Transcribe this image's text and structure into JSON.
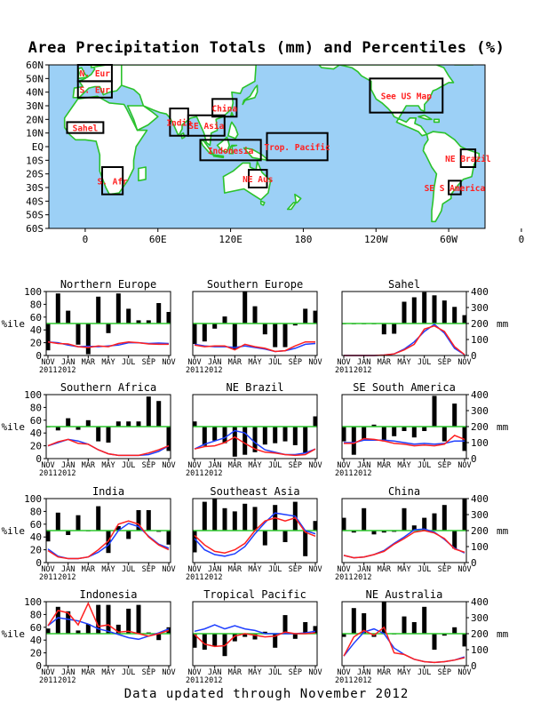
{
  "map": {
    "title": "Area Precipitation Totals (mm) and Percentiles (%)",
    "lat_ticks": [
      "60N",
      "50N",
      "40N",
      "30N",
      "20N",
      "10N",
      "EQ",
      "10S",
      "20S",
      "30S",
      "40S",
      "50S",
      "60S"
    ],
    "lon_ticks": [
      "0",
      "60E",
      "120E",
      "180",
      "120W",
      "60W",
      "0"
    ],
    "regions": [
      {
        "label": "N. Eur",
        "box": {
          "lon0": -6,
          "lon1": 22,
          "lat0": 48,
          "lat1": 60
        }
      },
      {
        "label": "S. Eur",
        "box": {
          "lon0": -6,
          "lon1": 22,
          "lat0": 36,
          "lat1": 48
        }
      },
      {
        "label": "Sahel",
        "box": {
          "lon0": -15,
          "lon1": 15,
          "lat0": 10,
          "lat1": 18
        }
      },
      {
        "label": "S. Afr",
        "box": {
          "lon0": 14,
          "lon1": 31,
          "lat0": -35,
          "lat1": -15
        }
      },
      {
        "label": "India",
        "box": {
          "lon0": 70,
          "lon1": 85,
          "lat0": 8,
          "lat1": 28
        }
      },
      {
        "label": "SE Asia",
        "box": {
          "lon0": 85,
          "lon1": 115,
          "lat0": 8,
          "lat1": 23
        }
      },
      {
        "label": "China",
        "box": {
          "lon0": 105,
          "lon1": 125,
          "lat0": 22,
          "lat1": 35
        }
      },
      {
        "label": "Indonesia",
        "box": {
          "lon0": 95,
          "lon1": 145,
          "lat0": -10,
          "lat1": 5
        }
      },
      {
        "label": "Trop. Pacific",
        "box": {
          "lon0": 150,
          "lon1": 200,
          "lat0": -10,
          "lat1": 10
        }
      },
      {
        "label": "NE Aus",
        "box": {
          "lon0": 135,
          "lon1": 150,
          "lat0": -30,
          "lat1": -17
        }
      },
      {
        "label": "See US Map",
        "box": {
          "lon0": 235,
          "lon1": 295,
          "lat0": 25,
          "lat1": 50
        }
      },
      {
        "label": "NE Brazil",
        "box": {
          "lon0": 310,
          "lon1": 322,
          "lat0": -15,
          "lat1": -2
        }
      },
      {
        "label": "SE S America",
        "box": {
          "lon0": 300,
          "lon1": 310,
          "lat0": -35,
          "lat1": -25
        }
      }
    ]
  },
  "panel_axes": {
    "pct_label": "%ile",
    "mm_label": "mm",
    "pct_ticks": [
      "0",
      "20",
      "40",
      "60",
      "80",
      "100"
    ],
    "mm_ticks": [
      "0",
      "100",
      "200",
      "300",
      "400"
    ],
    "month_ticks": [
      "NOV",
      "JAN",
      "MAR",
      "MAY",
      "JUL",
      "SEP",
      "NOV"
    ],
    "year_labels": [
      "2011",
      "2012"
    ]
  },
  "chart_data": [
    {
      "type": "bar+line",
      "title": "Northern Europe",
      "ylim_pct": [
        0,
        100
      ],
      "ylim_mm": [
        0,
        400
      ],
      "months": [
        "Nov 2011",
        "Dec 2011",
        "Jan 2012",
        "Feb 2012",
        "Mar 2012",
        "Apr 2012",
        "May 2012",
        "Jun 2012",
        "Jul 2012",
        "Aug 2012",
        "Sep 2012",
        "Oct 2012",
        "Nov 2012"
      ],
      "percentile": [
        8,
        97,
        70,
        17,
        2,
        92,
        35,
        97,
        73,
        55,
        55,
        82,
        68
      ],
      "mm_observed": [
        85,
        75,
        72,
        55,
        50,
        60,
        55,
        75,
        85,
        80,
        72,
        70,
        70
      ],
      "mm_normal": [
        85,
        80,
        65,
        55,
        58,
        55,
        60,
        65,
        80,
        80,
        75,
        78,
        75
      ]
    },
    {
      "type": "bar+line",
      "title": "Southern Europe",
      "ylim_pct": [
        0,
        100
      ],
      "ylim_mm": [
        0,
        400
      ],
      "percentile": [
        18,
        22,
        42,
        61,
        10,
        100,
        77,
        33,
        13,
        13,
        47,
        73,
        70
      ],
      "mm_observed": [
        65,
        55,
        60,
        60,
        35,
        70,
        55,
        45,
        25,
        30,
        60,
        85,
        85
      ],
      "mm_normal": [
        70,
        60,
        55,
        55,
        50,
        60,
        50,
        40,
        25,
        30,
        45,
        70,
        75
      ]
    },
    {
      "type": "bar+line",
      "title": "Sahel",
      "ylim_pct": [
        0,
        100
      ],
      "ylim_mm": [
        0,
        400
      ],
      "percentile": [
        50,
        50,
        50,
        50,
        33,
        34,
        84,
        91,
        99,
        94,
        86,
        76,
        63
      ],
      "mm_observed": [
        0,
        0,
        0,
        0,
        3,
        10,
        35,
        70,
        165,
        185,
        150,
        55,
        5
      ],
      "mm_normal": [
        0,
        0,
        0,
        0,
        3,
        10,
        40,
        85,
        150,
        195,
        140,
        45,
        5
      ]
    },
    {
      "type": "bar+line",
      "title": "Southern Africa",
      "ylim_pct": [
        0,
        100
      ],
      "ylim_mm": [
        0,
        400
      ],
      "percentile": [
        50,
        44,
        63,
        45,
        60,
        27,
        25,
        58,
        58,
        58,
        97,
        90,
        12
      ],
      "mm_observed": [
        80,
        105,
        120,
        95,
        90,
        55,
        30,
        20,
        20,
        20,
        35,
        55,
        80
      ],
      "mm_normal": [
        80,
        100,
        120,
        110,
        90,
        55,
        30,
        20,
        20,
        20,
        25,
        45,
        80
      ]
    },
    {
      "type": "bar+line",
      "title": "NE Brazil",
      "ylim_pct": [
        0,
        100
      ],
      "ylim_mm": [
        0,
        400
      ],
      "percentile": [
        58,
        20,
        28,
        24,
        3,
        6,
        10,
        22,
        24,
        27,
        21,
        8,
        66
      ],
      "mm_observed": [
        60,
        75,
        80,
        100,
        135,
        95,
        60,
        40,
        35,
        25,
        20,
        25,
        60
      ],
      "mm_normal": [
        60,
        90,
        110,
        130,
        175,
        160,
        100,
        55,
        40,
        25,
        25,
        35,
        60
      ]
    },
    {
      "type": "bar+line",
      "title": "SE South America",
      "ylim_pct": [
        0,
        100
      ],
      "ylim_mm": [
        0,
        400
      ],
      "percentile": [
        27,
        6,
        30,
        53,
        27,
        35,
        43,
        33,
        43,
        98,
        27,
        86,
        12
      ],
      "mm_observed": [
        95,
        95,
        125,
        120,
        110,
        95,
        90,
        80,
        85,
        80,
        90,
        145,
        120
      ],
      "mm_normal": [
        100,
        100,
        115,
        115,
        115,
        110,
        100,
        90,
        95,
        90,
        95,
        110,
        110
      ]
    },
    {
      "type": "bar+line",
      "title": "India",
      "ylim_pct": [
        0,
        100
      ],
      "ylim_mm": [
        0,
        400
      ],
      "percentile": [
        33,
        78,
        43,
        74,
        50,
        88,
        15,
        57,
        37,
        82,
        82,
        48,
        28
      ],
      "mm_observed": [
        75,
        35,
        25,
        25,
        35,
        80,
        135,
        240,
        260,
        240,
        160,
        110,
        80
      ],
      "mm_normal": [
        85,
        40,
        25,
        25,
        35,
        65,
        110,
        200,
        245,
        225,
        165,
        115,
        90
      ]
    },
    {
      "type": "bar+line",
      "title": "Southeast Asia",
      "ylim_pct": [
        0,
        100
      ],
      "ylim_mm": [
        0,
        400
      ],
      "percentile": [
        16,
        95,
        100,
        85,
        80,
        92,
        87,
        27,
        90,
        32,
        95,
        10,
        65
      ],
      "mm_observed": [
        170,
        110,
        70,
        60,
        80,
        120,
        200,
        260,
        280,
        260,
        280,
        190,
        165
      ],
      "mm_normal": [
        150,
        80,
        50,
        40,
        55,
        100,
        180,
        250,
        310,
        300,
        290,
        200,
        180
      ]
    },
    {
      "type": "bar+line",
      "title": "China",
      "ylim_pct": [
        0,
        100
      ],
      "ylim_mm": [
        0,
        400
      ],
      "percentile": [
        70,
        47,
        85,
        44,
        47,
        48,
        85,
        58,
        70,
        77,
        90,
        22,
        100
      ],
      "mm_observed": [
        45,
        30,
        35,
        50,
        70,
        115,
        150,
        190,
        200,
        185,
        150,
        85,
        65
      ],
      "mm_normal": [
        45,
        30,
        35,
        50,
        75,
        120,
        160,
        205,
        210,
        190,
        145,
        90,
        60
      ]
    },
    {
      "type": "bar+line",
      "title": "Indonesia",
      "ylim_pct": [
        0,
        100
      ],
      "ylim_mm": [
        0,
        400
      ],
      "percentile": [
        58,
        92,
        85,
        55,
        65,
        95,
        95,
        64,
        89,
        95,
        52,
        40,
        60
      ],
      "mm_observed": [
        250,
        345,
        330,
        255,
        390,
        245,
        255,
        210,
        215,
        200,
        185,
        200,
        220
      ],
      "mm_normal": [
        250,
        300,
        290,
        280,
        260,
        230,
        215,
        195,
        175,
        165,
        185,
        205,
        230
      ]
    },
    {
      "type": "bar+line",
      "title": "Tropical Pacific",
      "ylim_pct": [
        0,
        100
      ],
      "ylim_mm": [
        0,
        400
      ],
      "percentile": [
        28,
        25,
        30,
        15,
        38,
        45,
        41,
        53,
        28,
        79,
        42,
        68,
        62
      ],
      "mm_observed": [
        195,
        135,
        120,
        125,
        185,
        200,
        190,
        180,
        185,
        210,
        200,
        200,
        205
      ],
      "mm_normal": [
        215,
        230,
        255,
        230,
        250,
        230,
        220,
        200,
        200,
        200,
        200,
        205,
        215
      ]
    },
    {
      "type": "bar+line",
      "title": "NE Australia",
      "ylim_pct": [
        0,
        100
      ],
      "ylim_mm": [
        0,
        400
      ],
      "percentile": [
        45,
        90,
        82,
        45,
        100,
        50,
        77,
        68,
        92,
        25,
        47,
        60,
        30
      ],
      "mm_observed": [
        60,
        180,
        220,
        190,
        240,
        80,
        70,
        40,
        25,
        20,
        25,
        35,
        50
      ],
      "mm_normal": [
        60,
        140,
        210,
        230,
        200,
        110,
        70,
        40,
        25,
        20,
        25,
        35,
        55
      ]
    }
  ],
  "legend": {
    "observed_color": "#ff2020",
    "normal_color": "#1f3fff",
    "bar_color": "#000000",
    "median_line_color": "#2ec82e"
  },
  "colors": {
    "ocean": "#9cd0f6",
    "land": "#ffffff",
    "coast": "#2bc22b",
    "map_label": "#ff2020"
  },
  "footer": "Data updated through November 2012"
}
